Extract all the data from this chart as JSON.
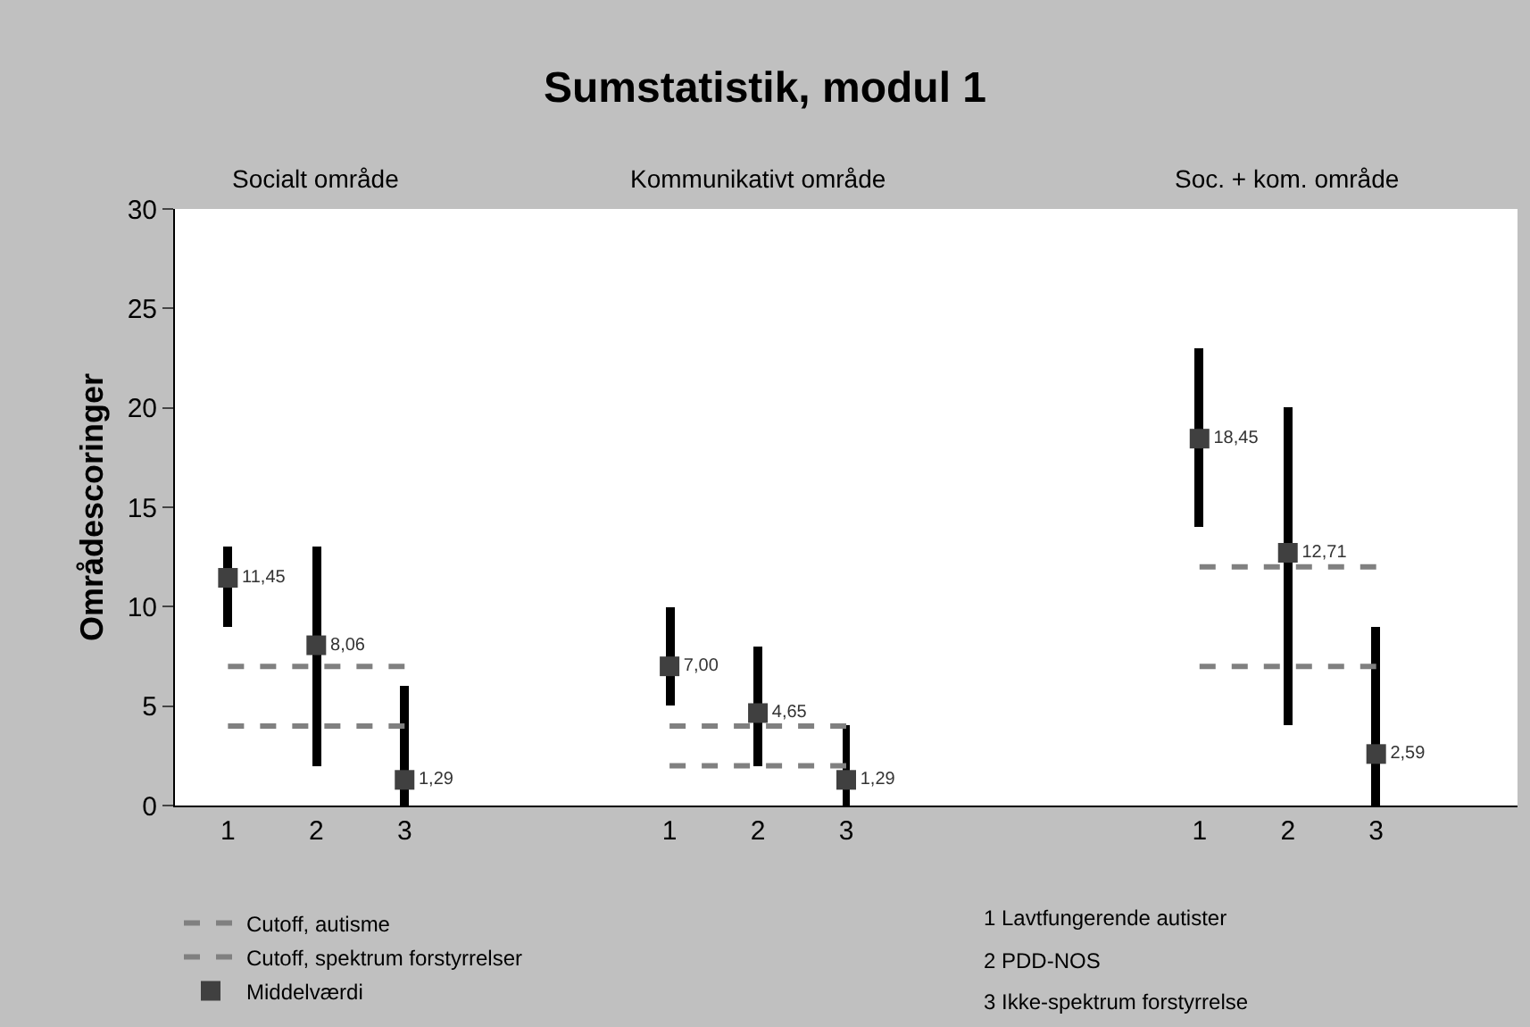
{
  "chart_data": {
    "type": "bar",
    "title": "Sumstatistik, modul 1",
    "ylabel": "Områdescoringer",
    "categories": [
      "1",
      "2",
      "3",
      null,
      null,
      "1",
      "2",
      "3",
      null,
      null,
      null,
      "1",
      "2",
      "3",
      null
    ],
    "series": [
      {
        "color": "#000000",
        "base": [
          9,
          2,
          0,
          null,
          null,
          5,
          2,
          0,
          null,
          null,
          null,
          14,
          4,
          0,
          null
        ],
        "values": [
          4,
          11,
          6,
          null,
          null,
          5,
          6,
          4,
          null,
          null,
          null,
          9,
          16,
          9,
          null
        ]
      },
      {
        "type": "line",
        "name": "Cutoff, autisme",
        "color": "#808080",
        "line_style": "dashed",
        "marker": "none",
        "values": [
          7,
          7,
          7,
          null,
          null,
          4,
          4,
          4,
          null,
          null,
          null,
          12,
          12,
          12,
          null
        ]
      },
      {
        "type": "line",
        "name": "Cutoff, spektrum forstyrrelser",
        "color": "#808080",
        "line_style": "dashed",
        "marker": "none",
        "values": [
          4,
          4,
          4,
          null,
          null,
          2,
          2,
          2,
          null,
          null,
          null,
          7,
          7,
          7,
          null
        ]
      },
      {
        "type": "scatter",
        "name": "Middelværdi",
        "color": "#404040",
        "marker": "square",
        "values": [
          11.45,
          8.06,
          1.29,
          null,
          null,
          7.0,
          4.65,
          1.29,
          null,
          null,
          null,
          18.45,
          12.71,
          2.59,
          null
        ],
        "value_labels": [
          "11,45",
          "8,06",
          "1,29",
          null,
          null,
          "7,00",
          "4,65",
          "1,29",
          null,
          null,
          null,
          "18,45",
          "12,71",
          "2,59",
          null
        ]
      }
    ],
    "ylim": [
      0,
      30
    ],
    "yticks": [
      0,
      5,
      10,
      15,
      20,
      25,
      30
    ],
    "grid": false,
    "legend": "bottom left",
    "annotations": [
      "Socialt område",
      "Kommunikativt område",
      "Soc. + kom. område",
      "1 Lavtfungerende autister",
      "2 PDD-NOS",
      "3 Ikke-spektrum forstyrrelse"
    ]
  }
}
